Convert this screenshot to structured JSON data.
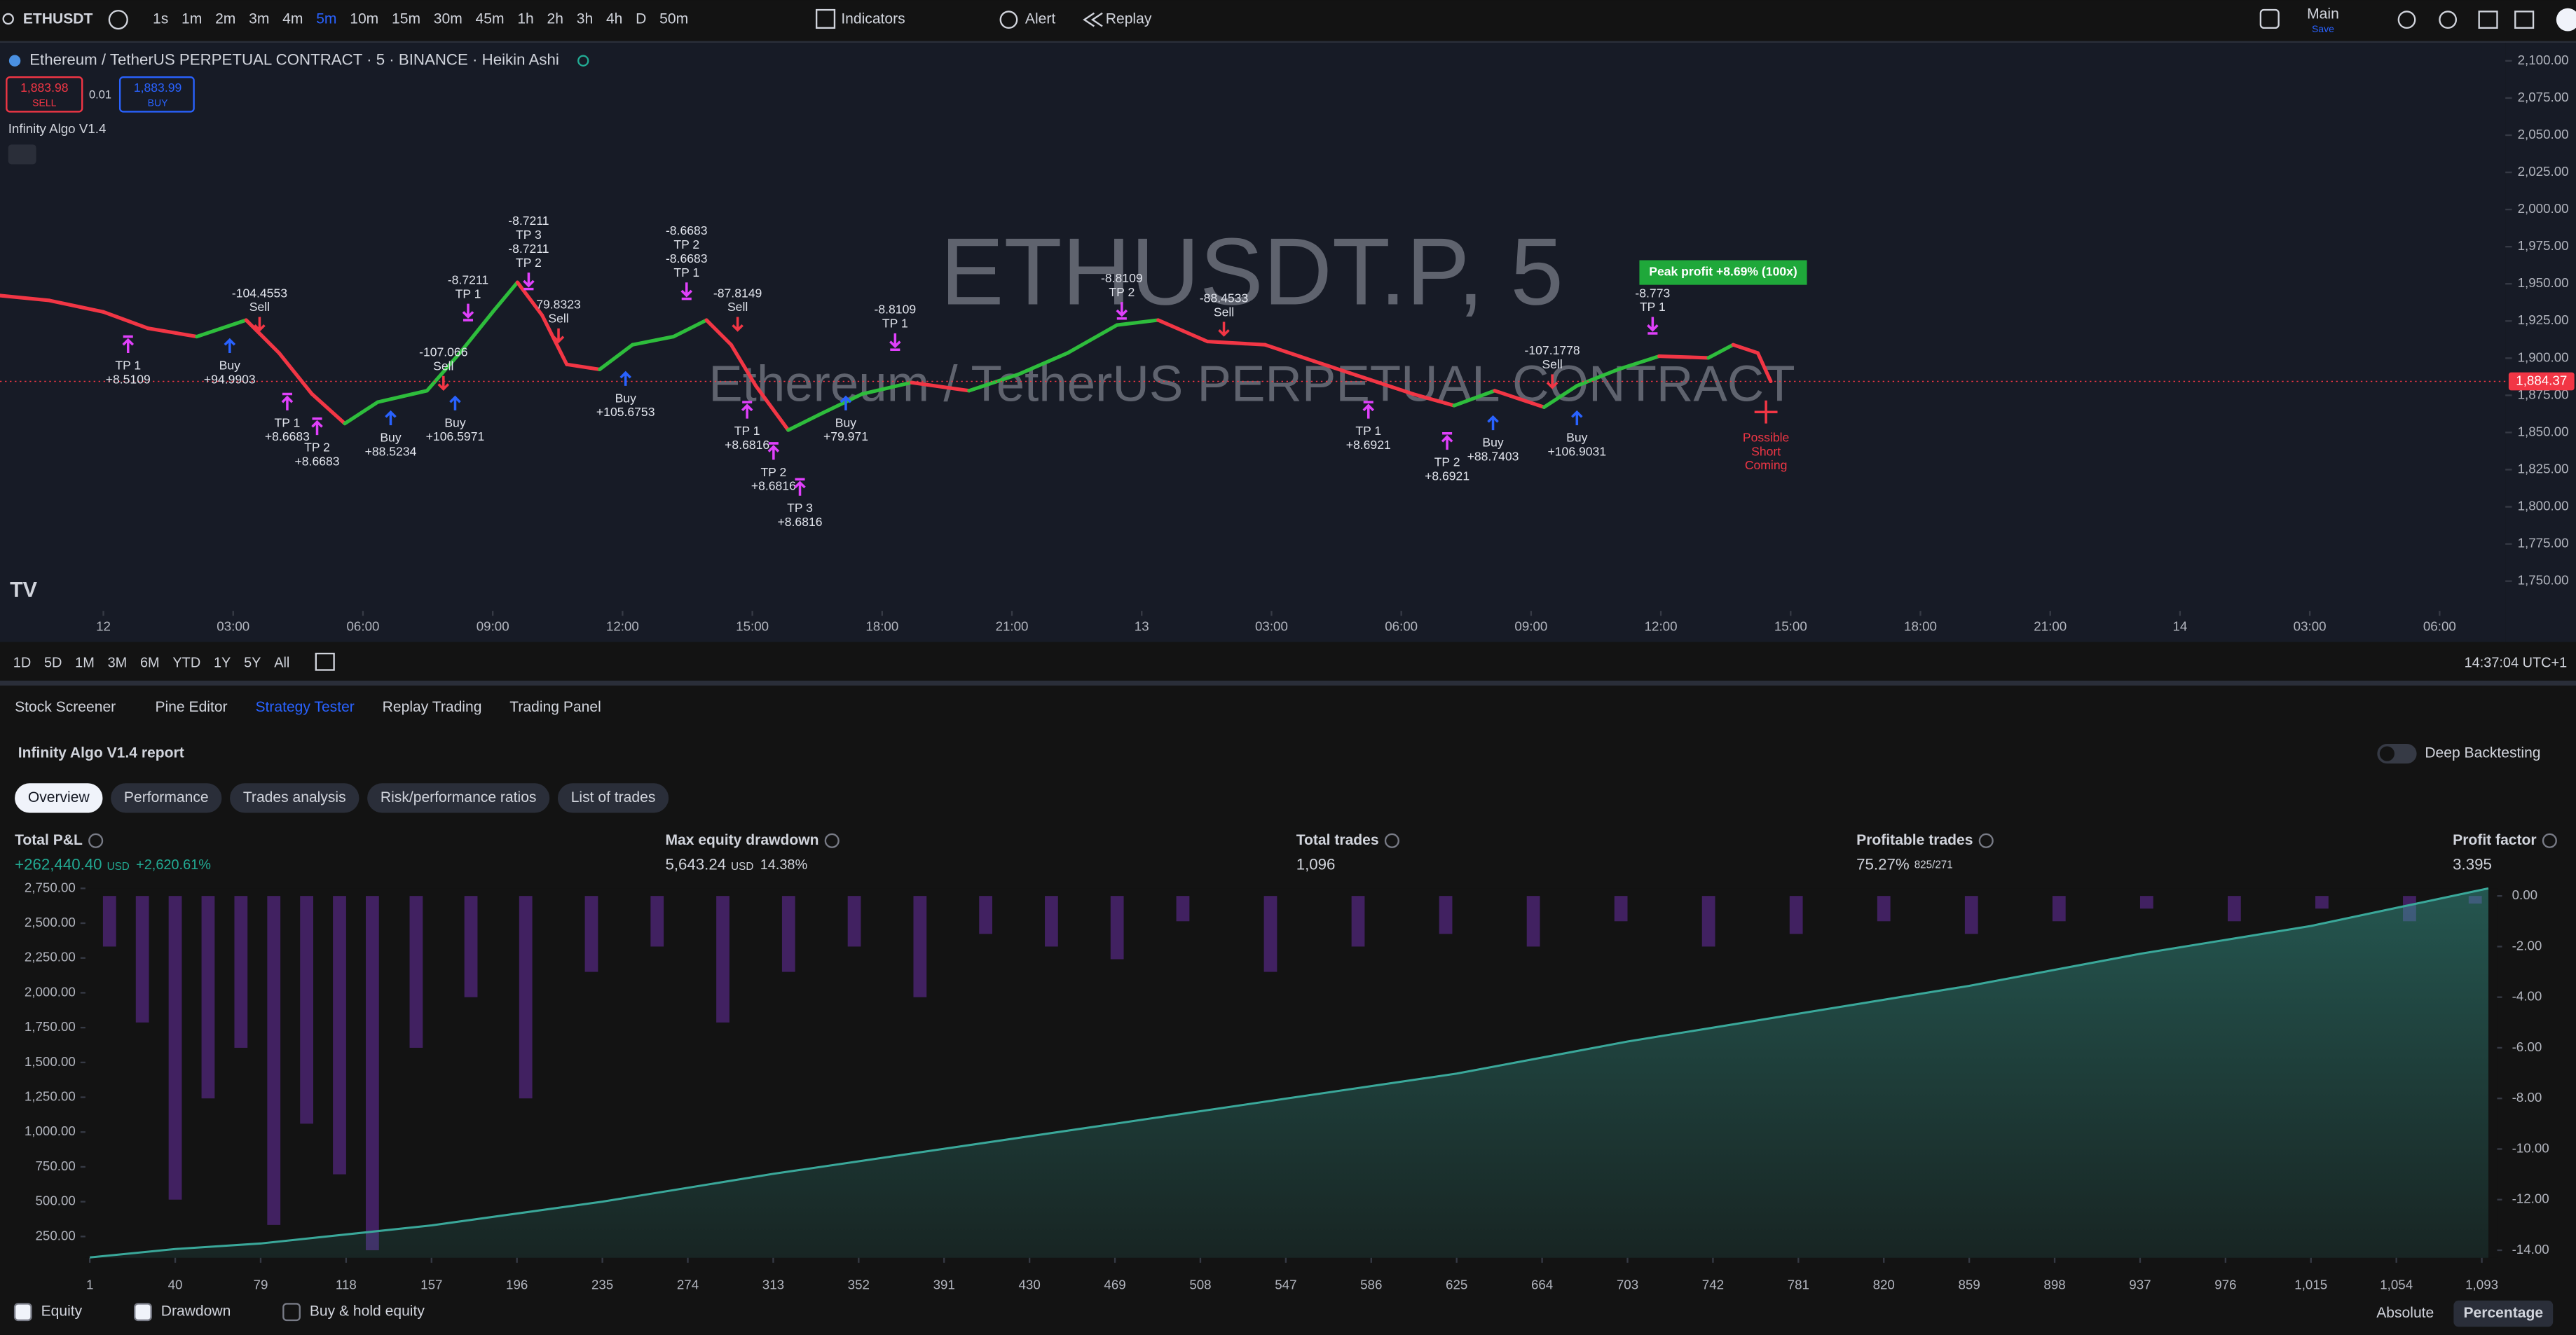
{
  "toolbar": {
    "symbol": "ETHUSDT",
    "intervals": [
      "1s",
      "1m",
      "2m",
      "3m",
      "4m",
      "5m",
      "10m",
      "15m",
      "30m",
      "45m",
      "1h",
      "2h",
      "3h",
      "4h",
      "D",
      "50m"
    ],
    "active_interval": 5,
    "indicators": "Indicators",
    "alert": "Alert",
    "replay": "Replay",
    "layout": "Main",
    "layout_action": "Save"
  },
  "chart": {
    "type": "line",
    "legend": "Ethereum / TetherUS PERPETUAL CONTRACT · 5 · BINANCE · Heikin Ashi",
    "sell_price": "1,883.98",
    "sell": "SELL",
    "spread": "0.01",
    "buy_price": "1,883.99",
    "buy": "BUY",
    "indicator": "Infinity Algo V1.4",
    "watermark": "ETHUSDT.P, 5",
    "watermark_subtitle": "Ethereum / TetherUS PERPETUAL CONTRACT",
    "xlim": [
      -2.39,
      55.52
    ],
    "xticks": [
      {
        "value": 0,
        "label": "12"
      },
      {
        "value": 3,
        "label": "03:00"
      },
      {
        "value": 6,
        "label": "06:00"
      },
      {
        "value": 9,
        "label": "09:00"
      },
      {
        "value": 12,
        "label": "12:00"
      },
      {
        "value": 15,
        "label": "15:00"
      },
      {
        "value": 18,
        "label": "18:00"
      },
      {
        "value": 21,
        "label": "21:00"
      },
      {
        "value": 24,
        "label": "13"
      },
      {
        "value": 27,
        "label": "03:00"
      },
      {
        "value": 30,
        "label": "06:00"
      },
      {
        "value": 33,
        "label": "09:00"
      },
      {
        "value": 36,
        "label": "12:00"
      },
      {
        "value": 39,
        "label": "15:00"
      },
      {
        "value": 42,
        "label": "18:00"
      },
      {
        "value": 45,
        "label": "21:00"
      },
      {
        "value": 48,
        "label": "14"
      },
      {
        "value": 51,
        "label": "03:00"
      },
      {
        "value": 54,
        "label": "06:00"
      }
    ],
    "ylim": [
      1730,
      2110
    ],
    "yticks": [
      {
        "value": 2100,
        "label": "2,100.00"
      },
      {
        "value": 2075,
        "label": "2,075.00"
      },
      {
        "value": 2050,
        "label": "2,050.00"
      },
      {
        "value": 2025,
        "label": "2,025.00"
      },
      {
        "value": 2000,
        "label": "2,000.00"
      },
      {
        "value": 1975,
        "label": "1,975.00"
      },
      {
        "value": 1950,
        "label": "1,950.00"
      },
      {
        "value": 1925,
        "label": "1,925.00"
      },
      {
        "value": 1900,
        "label": "1,900.00"
      },
      {
        "value": 1875,
        "label": "1,875.00"
      },
      {
        "value": 1850,
        "label": "1,850.00"
      },
      {
        "value": 1825,
        "label": "1,825.00"
      },
      {
        "value": 1800,
        "label": "1,800.00"
      },
      {
        "value": 1775,
        "label": "1,775.00"
      },
      {
        "value": 1750,
        "label": "1,750.00"
      }
    ],
    "price": {
      "up_color": "#2ebd3c",
      "down_color": "#f23645",
      "x": [
        -2.39,
        -1.25,
        0,
        1.03,
        2.16,
        3.3,
        4.06,
        4.82,
        5.58,
        6.34,
        7.48,
        8.24,
        9,
        9.57,
        10.14,
        10.71,
        11.47,
        12.23,
        13.18,
        13.94,
        14.51,
        15.08,
        15.83,
        16.59,
        17.54,
        18.68,
        20.01,
        21.15,
        22.29,
        23.43,
        24.38,
        25.52,
        26.85,
        27.99,
        29.13,
        30.27,
        31.22,
        32.16,
        33.3,
        34.06,
        35.01,
        35.96,
        37.1,
        37.67,
        38.24,
        38.54
      ],
      "values": [
        1942.1,
        1938.8,
        1931.1,
        1920.1,
        1914.5,
        1925.6,
        1903.5,
        1875.9,
        1856,
        1870.4,
        1878.1,
        1903.5,
        1931.1,
        1951,
        1928.9,
        1895.8,
        1892.4,
        1909,
        1914.5,
        1925.6,
        1909,
        1881.4,
        1851.6,
        1862.6,
        1875.9,
        1883.6,
        1878.1,
        1889.1,
        1903.5,
        1922.3,
        1925.6,
        1911.2,
        1909,
        1897.9,
        1886.9,
        1875.9,
        1868.1,
        1878.1,
        1867,
        1881.4,
        1892.4,
        1901.3,
        1900.2,
        1909,
        1903.5,
        1884.4
      ]
    },
    "last_price": {
      "value": 1884.37,
      "label": "1,884.37"
    },
    "annotations": [
      {
        "lines": [
          "-104.4553",
          "Sell"
        ],
        "x": 3.61,
        "price": 1947.6,
        "arrow": "sell"
      },
      {
        "lines": [
          "TP 1",
          "+8.5109"
        ],
        "x": 0.57,
        "price": 1914.5,
        "arrow": "tp-up"
      },
      {
        "lines": [
          "Buy",
          "+94.9903"
        ],
        "x": 2.92,
        "price": 1914.5,
        "arrow": "buy"
      },
      {
        "lines": [
          "TP 1",
          "+8.6683"
        ],
        "x": 4.25,
        "price": 1875.9,
        "arrow": "tp-up"
      },
      {
        "lines": [
          "TP 2",
          "+8.6683"
        ],
        "x": 4.94,
        "price": 1859.3,
        "arrow": "tp-up"
      },
      {
        "lines": [
          "Buy",
          "+88.5234"
        ],
        "x": 6.64,
        "price": 1865.9,
        "arrow": "buy"
      },
      {
        "lines": [
          "-107.066",
          "Sell"
        ],
        "x": 7.86,
        "price": 1907.9,
        "arrow": "sell"
      },
      {
        "lines": [
          "Buy",
          "+106.5971"
        ],
        "x": 8.13,
        "price": 1875.9,
        "arrow": "buy"
      },
      {
        "lines": [
          "-8.7211",
          "TP 1"
        ],
        "x": 8.43,
        "price": 1956.5,
        "arrow": "tp-down"
      },
      {
        "lines": [
          "-8.7211",
          "TP 3",
          "-8.7211",
          "TP 2"
        ],
        "x": 9.83,
        "price": 1996.2,
        "arrow": "tp-down"
      },
      {
        "lines": [
          "79.8323",
          "Sell"
        ],
        "x": 10.52,
        "price": 1939.9,
        "arrow": "sell"
      },
      {
        "lines": [
          "Buy",
          "+105.6753"
        ],
        "x": 12.07,
        "price": 1892.4,
        "arrow": "buy"
      },
      {
        "lines": [
          "-8.6683",
          "TP 2",
          "-8.6683",
          "TP 1"
        ],
        "x": 13.48,
        "price": 1989.6,
        "arrow": "tp-down"
      },
      {
        "lines": [
          "-87.8149",
          "Sell"
        ],
        "x": 14.66,
        "price": 1947.6,
        "arrow": "sell"
      },
      {
        "lines": [
          "TP 1",
          "+8.6816"
        ],
        "x": 14.88,
        "price": 1870.4,
        "arrow": "tp-up"
      },
      {
        "lines": [
          "TP 2",
          "+8.6816"
        ],
        "x": 15.49,
        "price": 1842.7,
        "arrow": "tp-up"
      },
      {
        "lines": [
          "TP 3",
          "+8.6816"
        ],
        "x": 16.1,
        "price": 1818.5,
        "arrow": "tp-up"
      },
      {
        "lines": [
          "Buy",
          "+79.971"
        ],
        "x": 17.16,
        "price": 1875.9,
        "arrow": "buy"
      },
      {
        "lines": [
          "-8.8109",
          "TP 1"
        ],
        "x": 18.3,
        "price": 1936.6,
        "arrow": "tp-down"
      },
      {
        "lines": [
          "-8.8109",
          "TP 2"
        ],
        "x": 23.54,
        "price": 1957.6,
        "arrow": "tp-down"
      },
      {
        "lines": [
          "-88.4533",
          "Sell"
        ],
        "x": 25.9,
        "price": 1944.3,
        "arrow": "sell"
      },
      {
        "lines": [
          "TP 1",
          "+8.6921"
        ],
        "x": 29.24,
        "price": 1870.4,
        "arrow": "tp-up"
      },
      {
        "lines": [
          "TP 2",
          "+8.6921"
        ],
        "x": 31.06,
        "price": 1849.4,
        "arrow": "tp-up"
      },
      {
        "lines": [
          "Buy",
          "+88.7403"
        ],
        "x": 32.12,
        "price": 1862.6,
        "arrow": "buy"
      },
      {
        "lines": [
          "-107.1778",
          "Sell"
        ],
        "x": 33.49,
        "price": 1909,
        "arrow": "sell"
      },
      {
        "lines": [
          "Buy",
          "+106.9031"
        ],
        "x": 34.06,
        "price": 1865.9,
        "arrow": "buy"
      },
      {
        "lines": [
          "-8.773",
          "TP 1"
        ],
        "x": 35.81,
        "price": 1947.6,
        "arrow": "tp-down"
      },
      {
        "lines": [
          "Possible",
          "Short",
          "Coming"
        ],
        "x": 38.43,
        "price": 1869.3,
        "arrow": "short"
      }
    ],
    "peak": {
      "text": "Peak profit +8.69% (100x)",
      "x": 37.44,
      "price": 1957.6
    },
    "ranges": [
      "1D",
      "5D",
      "1M",
      "3M",
      "6M",
      "YTD",
      "1Y",
      "5Y",
      "All"
    ],
    "clock": "14:37:04 UTC+1"
  },
  "strategy": {
    "tabs": [
      "Stock Screener",
      "Pine Editor",
      "Strategy Tester",
      "Replay Trading",
      "Trading Panel"
    ],
    "active_tab": 2,
    "report": "Infinity Algo V1.4 report",
    "deep_backtesting": "Deep Backtesting",
    "report_tabs": [
      "Overview",
      "Performance",
      "Trades analysis",
      "Risk/performance ratios",
      "List of trades"
    ],
    "active_report_tab": 0,
    "metrics": [
      {
        "label": "Total P&L",
        "value": "+262,440.40",
        "unit": "USD",
        "extra": "+2,620.61%"
      },
      {
        "label": "Max equity drawdown",
        "value": "5,643.24",
        "unit": "USD",
        "extra": "14.38%"
      },
      {
        "label": "Total trades",
        "value": "1,096"
      },
      {
        "label": "Profitable trades",
        "value": "75.27%",
        "extra": "825/271"
      },
      {
        "label": "Profit factor",
        "value": "3.395"
      }
    ],
    "equity_chart": {
      "type": "area",
      "xlim": [
        -1,
        1100
      ],
      "xticks": [
        1,
        40,
        79,
        118,
        157,
        196,
        235,
        274,
        313,
        352,
        391,
        430,
        469,
        508,
        547,
        586,
        625,
        664,
        703,
        742,
        781,
        820,
        859,
        898,
        937,
        976,
        {
          "value": 1015,
          "label": "1,015"
        },
        {
          "value": 1054,
          "label": "1,054"
        },
        {
          "value": 1093,
          "label": "1,093"
        }
      ],
      "ylim": [
        97,
        2750
      ],
      "yticks": [
        {
          "value": 2750,
          "label": "2,750.00"
        },
        {
          "value": 2500,
          "label": "2,500.00"
        },
        {
          "value": 2250,
          "label": "2,250.00"
        },
        {
          "value": 2000,
          "label": "2,000.00"
        },
        {
          "value": 1750,
          "label": "1,750.00"
        },
        {
          "value": 1500,
          "label": "1,500.00"
        },
        {
          "value": 1250,
          "label": "1,250.00"
        },
        {
          "value": 1000,
          "label": "1,000.00"
        },
        {
          "value": 750,
          "label": "750.00"
        },
        {
          "value": 500,
          "label": "500.00"
        },
        {
          "value": 250,
          "label": "250.00"
        }
      ],
      "y2lim": [
        -14.3,
        0.3
      ],
      "y2ticks": [
        {
          "value": 0,
          "label": "0.00"
        },
        {
          "value": -2,
          "label": "-2.00"
        },
        {
          "value": -4,
          "label": "-4.00"
        },
        {
          "value": -6,
          "label": "-6.00"
        },
        {
          "value": -8,
          "label": "-8.00"
        },
        {
          "value": -10,
          "label": "-10.00"
        },
        {
          "value": -12,
          "label": "-12.00"
        },
        {
          "value": -14,
          "label": "-14.00"
        }
      ],
      "series": [
        {
          "name": "Equity",
          "color": "#3aa89a",
          "x": [
            1,
            40,
            79,
            157,
            235,
            313,
            391,
            469,
            547,
            625,
            703,
            781,
            859,
            937,
            1015,
            1096
          ],
          "values": [
            100,
            160,
            200,
            330,
            500,
            700,
            880,
            1060,
            1240,
            1420,
            1650,
            1850,
            2050,
            2280,
            2480,
            2750
          ]
        },
        {
          "name": "Drawdown",
          "color": "#4a2470",
          "axis": "y2",
          "x": [
            10,
            25,
            40,
            55,
            70,
            85,
            100,
            115,
            130,
            150,
            175,
            200,
            230,
            260,
            290,
            320,
            350,
            380,
            410,
            440,
            470,
            500,
            540,
            580,
            620,
            660,
            700,
            740,
            780,
            820,
            860,
            900,
            940,
            980,
            1020,
            1060,
            1090
          ],
          "values": [
            -2,
            -5,
            -12,
            -8,
            -6,
            -13,
            -9,
            -11,
            -14,
            -6,
            -4,
            -8,
            -3,
            -2,
            -5,
            -3,
            -2,
            -4,
            -1.5,
            -2,
            -2.5,
            -1,
            -3,
            -2,
            -1.5,
            -2,
            -1,
            -2,
            -1.5,
            -1,
            -1.5,
            -1,
            -0.5,
            -1,
            -0.5,
            -1,
            -0.3
          ]
        },
        {
          "name": "Buy & hold equity"
        }
      ],
      "checked": [
        true,
        true,
        false
      ],
      "views": [
        "Absolute",
        "Percentage"
      ],
      "active_view": 1
    }
  }
}
